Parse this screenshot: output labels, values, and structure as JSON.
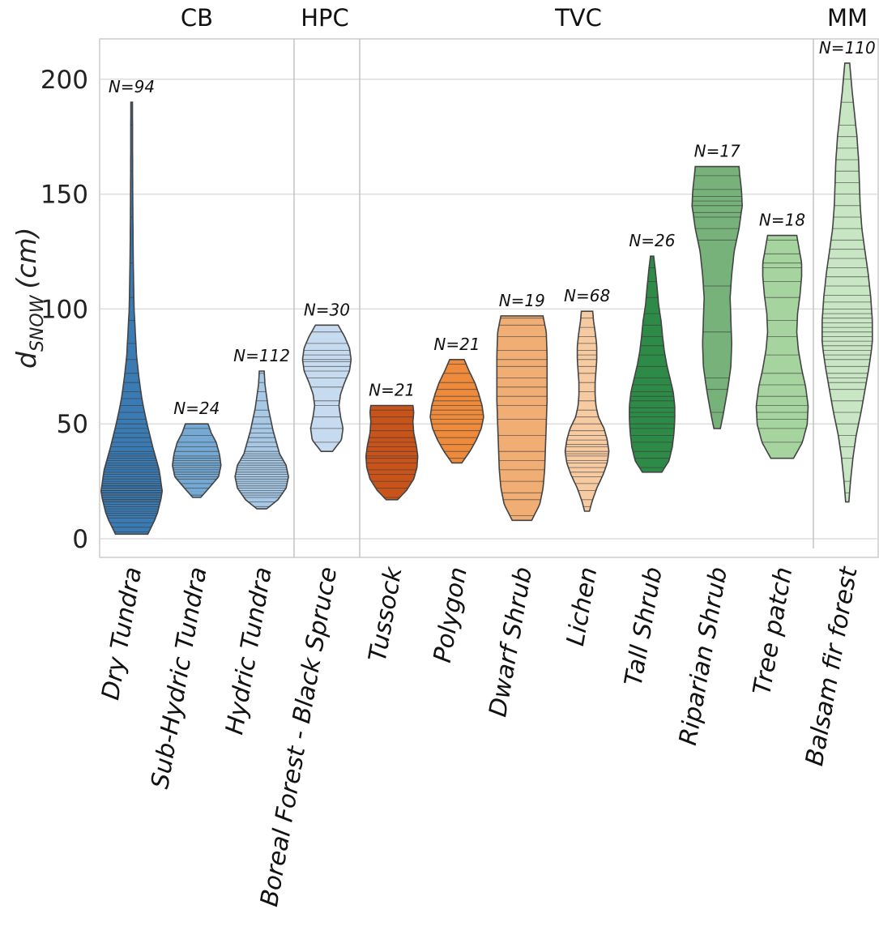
{
  "chart_data": {
    "type": "violin",
    "ylabel_main": "d",
    "ylabel_sub": "snow",
    "ylabel_unit": "(cm)",
    "ylim": [
      -7,
      218
    ],
    "yticks": [
      0,
      50,
      100,
      150,
      200
    ],
    "grid": true,
    "groups": [
      {
        "label": "CB",
        "categories": [
          "Dry Tundra",
          "Sub-Hydric Tundra",
          "Hydric Tundra"
        ]
      },
      {
        "label": "HPC",
        "categories": [
          "Boreal Forest - Black Spruce"
        ]
      },
      {
        "label": "TVC",
        "categories": [
          "Tussock",
          "Polygon",
          "Dwarf Shrub",
          "Lichen",
          "Tall Shrub",
          "Riparian Shrub",
          "Tree patch"
        ]
      },
      {
        "label": "MM",
        "categories": [
          "Balsam fir forest"
        ]
      }
    ],
    "series": [
      {
        "name": "Dry Tundra",
        "n_label": "N=94",
        "color": "#3b7bb4",
        "min": 2,
        "max": 190,
        "profile": [
          [
            2,
            20
          ],
          [
            10,
            31
          ],
          [
            20,
            38
          ],
          [
            30,
            34
          ],
          [
            40,
            26
          ],
          [
            50,
            19
          ],
          [
            60,
            13
          ],
          [
            70,
            9
          ],
          [
            80,
            6
          ],
          [
            90,
            4.5
          ],
          [
            100,
            3
          ],
          [
            120,
            2
          ],
          [
            140,
            1.5
          ],
          [
            160,
            1.2
          ],
          [
            190,
            1
          ]
        ],
        "obs": [
          3,
          5,
          7,
          9,
          10,
          11,
          12,
          13,
          14,
          15,
          16,
          16,
          17,
          17,
          18,
          18,
          19,
          19,
          20,
          20,
          21,
          21,
          22,
          22,
          23,
          23,
          24,
          24,
          25,
          26,
          27,
          28,
          29,
          30,
          31,
          32,
          33,
          34,
          35,
          36,
          37,
          38,
          40,
          42,
          44,
          46,
          48,
          50,
          52,
          55,
          58,
          61,
          64,
          68,
          72,
          78,
          85,
          95,
          105,
          120,
          140,
          160,
          180,
          190
        ]
      },
      {
        "name": "Sub-Hydric Tundra",
        "n_label": "N=24",
        "color": "#75a9d3",
        "min": 18,
        "max": 50,
        "profile": [
          [
            18,
            5
          ],
          [
            22,
            15
          ],
          [
            27,
            27
          ],
          [
            32,
            30
          ],
          [
            37,
            28
          ],
          [
            42,
            24
          ],
          [
            46,
            18
          ],
          [
            50,
            14
          ]
        ],
        "obs": [
          19,
          22,
          24,
          26,
          27,
          28,
          29,
          30,
          31,
          32,
          33,
          34,
          35,
          36,
          38,
          40,
          42,
          45,
          48,
          50
        ]
      },
      {
        "name": "Hydric Tundra",
        "n_label": "N=112",
        "color": "#a7c9e6",
        "min": 13,
        "max": 73,
        "profile": [
          [
            13,
            6
          ],
          [
            17,
            20
          ],
          [
            22,
            30
          ],
          [
            27,
            33
          ],
          [
            32,
            30
          ],
          [
            37,
            22
          ],
          [
            42,
            18
          ],
          [
            47,
            14
          ],
          [
            52,
            11
          ],
          [
            57,
            8
          ],
          [
            62,
            6
          ],
          [
            67,
            4
          ],
          [
            73,
            3
          ]
        ],
        "obs": [
          14,
          16,
          18,
          19,
          20,
          21,
          22,
          23,
          24,
          25,
          26,
          27,
          28,
          29,
          30,
          31,
          32,
          33,
          34,
          35,
          36,
          37,
          38,
          40,
          42,
          44,
          46,
          48,
          50,
          53,
          56,
          60,
          64,
          68,
          72
        ]
      },
      {
        "name": "Boreal Forest - Black Spruce",
        "n_label": "N=30",
        "color": "#c6dbef",
        "min": 38,
        "max": 93,
        "profile": [
          [
            38,
            7
          ],
          [
            43,
            18
          ],
          [
            48,
            20
          ],
          [
            53,
            17
          ],
          [
            58,
            15
          ],
          [
            63,
            17
          ],
          [
            68,
            22
          ],
          [
            73,
            28
          ],
          [
            78,
            30
          ],
          [
            83,
            28
          ],
          [
            88,
            22
          ],
          [
            93,
            14
          ]
        ],
        "obs": [
          42,
          48,
          53,
          58,
          60,
          66,
          70,
          73,
          75,
          77,
          78,
          80,
          82,
          85,
          90
        ]
      },
      {
        "name": "Tussock",
        "n_label": "N=21",
        "color": "#c8541c",
        "min": 17,
        "max": 58,
        "profile": [
          [
            17,
            7
          ],
          [
            21,
            18
          ],
          [
            26,
            27
          ],
          [
            31,
            31
          ],
          [
            36,
            32
          ],
          [
            41,
            30
          ],
          [
            46,
            27
          ],
          [
            51,
            26
          ],
          [
            55,
            27
          ],
          [
            58,
            26
          ]
        ],
        "obs": [
          18,
          22,
          25,
          28,
          30,
          33,
          35,
          36,
          38,
          40,
          42,
          44,
          47,
          50,
          53,
          56,
          58
        ]
      },
      {
        "name": "Polygon",
        "n_label": "N=21",
        "color": "#ee8a3c",
        "min": 33,
        "max": 78,
        "profile": [
          [
            33,
            6
          ],
          [
            38,
            16
          ],
          [
            43,
            24
          ],
          [
            48,
            30
          ],
          [
            53,
            33
          ],
          [
            58,
            31
          ],
          [
            63,
            27
          ],
          [
            68,
            22
          ],
          [
            73,
            15
          ],
          [
            78,
            9
          ]
        ],
        "obs": [
          35,
          38,
          41,
          44,
          47,
          50,
          52,
          54,
          56,
          58,
          60,
          62,
          65,
          68,
          72,
          76
        ]
      },
      {
        "name": "Dwarf Shrub",
        "n_label": "N=19",
        "color": "#f0ad74",
        "min": 8,
        "max": 97,
        "profile": [
          [
            8,
            12
          ],
          [
            15,
            22
          ],
          [
            22,
            26
          ],
          [
            30,
            28
          ],
          [
            40,
            29
          ],
          [
            50,
            30
          ],
          [
            60,
            31
          ],
          [
            70,
            31
          ],
          [
            80,
            31
          ],
          [
            90,
            30
          ],
          [
            97,
            26
          ]
        ],
        "obs": [
          10,
          17,
          20,
          25,
          30,
          34,
          38,
          45,
          52,
          58,
          62,
          66,
          70,
          75,
          78,
          82,
          88,
          93,
          96
        ]
      },
      {
        "name": "Lichen",
        "n_label": "N=68",
        "color": "#f7cba2",
        "min": 12,
        "max": 99,
        "profile": [
          [
            12,
            3
          ],
          [
            16,
            6
          ],
          [
            22,
            12
          ],
          [
            28,
            20
          ],
          [
            33,
            25
          ],
          [
            38,
            27
          ],
          [
            43,
            25
          ],
          [
            48,
            21
          ],
          [
            53,
            14
          ],
          [
            58,
            11
          ],
          [
            63,
            10
          ],
          [
            68,
            10
          ],
          [
            73,
            11
          ],
          [
            78,
            12
          ],
          [
            84,
            12
          ],
          [
            90,
            10
          ],
          [
            95,
            8
          ],
          [
            99,
            7
          ]
        ],
        "obs": [
          14,
          17,
          21,
          24,
          27,
          29,
          31,
          33,
          34,
          36,
          37,
          38,
          40,
          41,
          43,
          45,
          47,
          50,
          53,
          56,
          60,
          64,
          68,
          72,
          75,
          78,
          80,
          82,
          85,
          88,
          92,
          96
        ]
      },
      {
        "name": "Tall Shrub",
        "n_label": "N=26",
        "color": "#2e8b47",
        "min": 29,
        "max": 123,
        "profile": [
          [
            29,
            12
          ],
          [
            34,
            21
          ],
          [
            40,
            25
          ],
          [
            46,
            27
          ],
          [
            52,
            28
          ],
          [
            58,
            28
          ],
          [
            64,
            26
          ],
          [
            70,
            22
          ],
          [
            76,
            18
          ],
          [
            82,
            15
          ],
          [
            88,
            13
          ],
          [
            95,
            11
          ],
          [
            102,
            8
          ],
          [
            110,
            6
          ],
          [
            117,
            4
          ],
          [
            123,
            2
          ]
        ],
        "obs": [
          31,
          35,
          38,
          42,
          45,
          48,
          50,
          53,
          55,
          57,
          60,
          62,
          64,
          67,
          70,
          75,
          80,
          84,
          88,
          93,
          98,
          105,
          112,
          118
        ]
      },
      {
        "name": "Riparian Shrub",
        "n_label": "N=17",
        "color": "#76b279",
        "min": 48,
        "max": 162,
        "profile": [
          [
            48,
            4
          ],
          [
            55,
            8
          ],
          [
            65,
            13
          ],
          [
            75,
            17
          ],
          [
            85,
            18
          ],
          [
            95,
            17
          ],
          [
            105,
            16
          ],
          [
            115,
            18
          ],
          [
            125,
            21
          ],
          [
            135,
            27
          ],
          [
            145,
            31
          ],
          [
            152,
            30
          ],
          [
            158,
            28
          ],
          [
            162,
            27
          ]
        ],
        "obs": [
          55,
          65,
          70,
          90,
          110,
          130,
          135,
          140,
          142,
          145,
          147,
          149,
          152,
          158
        ]
      },
      {
        "name": "Tree patch",
        "n_label": "N=18",
        "color": "#a5d49e",
        "min": 35,
        "max": 132,
        "profile": [
          [
            35,
            14
          ],
          [
            42,
            25
          ],
          [
            50,
            31
          ],
          [
            58,
            32
          ],
          [
            66,
            29
          ],
          [
            74,
            24
          ],
          [
            82,
            20
          ],
          [
            90,
            18
          ],
          [
            98,
            19
          ],
          [
            106,
            22
          ],
          [
            114,
            24
          ],
          [
            120,
            24
          ],
          [
            126,
            21
          ],
          [
            132,
            18
          ]
        ],
        "obs": [
          42,
          48,
          52,
          55,
          58,
          62,
          67,
          72,
          80,
          88,
          95,
          105,
          112,
          118,
          120,
          124,
          130
        ]
      },
      {
        "name": "Balsam fir forest",
        "n_label": "N=110",
        "color": "#c8e6c3",
        "min": 16,
        "max": 207,
        "profile": [
          [
            16,
            2
          ],
          [
            25,
            4
          ],
          [
            35,
            7
          ],
          [
            45,
            11
          ],
          [
            55,
            17
          ],
          [
            65,
            22
          ],
          [
            75,
            27
          ],
          [
            85,
            31
          ],
          [
            95,
            31
          ],
          [
            105,
            29
          ],
          [
            115,
            26
          ],
          [
            125,
            22
          ],
          [
            135,
            18
          ],
          [
            145,
            16
          ],
          [
            155,
            15
          ],
          [
            165,
            14
          ],
          [
            175,
            12
          ],
          [
            185,
            9
          ],
          [
            195,
            6
          ],
          [
            207,
            3
          ]
        ],
        "obs": [
          20,
          25,
          35,
          40,
          45,
          50,
          55,
          60,
          65,
          68,
          70,
          72,
          75,
          78,
          80,
          82,
          84,
          86,
          88,
          90,
          92,
          94,
          96,
          98,
          100,
          103,
          106,
          110,
          114,
          118,
          122,
          126,
          130,
          135,
          140,
          145,
          150,
          155,
          160,
          165,
          170,
          175,
          180,
          190,
          200
        ]
      }
    ]
  }
}
